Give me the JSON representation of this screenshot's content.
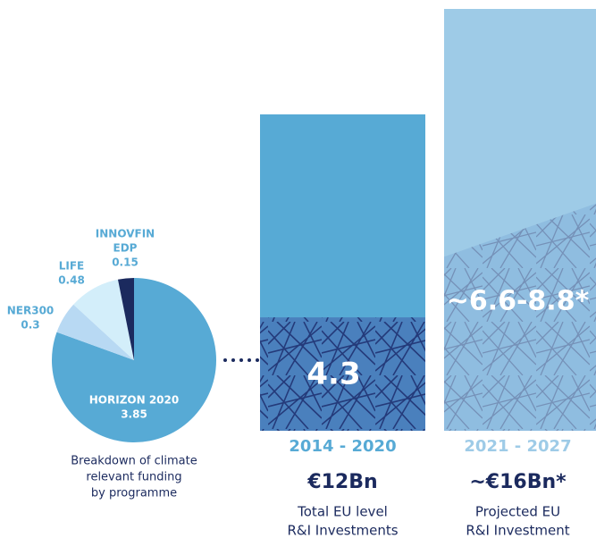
{
  "chart_data": [
    {
      "type": "pie",
      "labels": [
        [
          "HORIZON 2020"
        ],
        [
          "NER300"
        ],
        [
          "LIFE"
        ],
        [
          "INNOVFIN",
          "EDP"
        ]
      ],
      "values": [
        3.85,
        0.3,
        0.48,
        0.15
      ],
      "colors": [
        "#57aad5",
        "#b8d9f3",
        "#d3eefa",
        "#1b2a5e"
      ],
      "label_colors": [
        "#ffffff",
        "#57aad5",
        "#57aad5",
        "#57aad5"
      ],
      "caption": [
        "Breakdown of climate",
        "relevant funding",
        "by programme"
      ]
    },
    {
      "type": "bar",
      "categories": [
        "2014 - 2020",
        "2021 - 2027"
      ],
      "colors": [
        "#57aad5",
        "#9ecbe7"
      ],
      "captions": [
        [
          "Total EU level",
          "R&I Investments"
        ],
        [
          "Projected EU",
          "R&I Investment"
        ]
      ],
      "series": [
        {
          "values": [
            12,
            16
          ],
          "value_labels": [
            "€12Bn",
            "~€16Bn*"
          ]
        },
        {
          "values": [
            4.3,
            6.6
          ],
          "value_labels": [
            "4.3",
            "~6.6-8.8*"
          ]
        },
        {
          "values": [
            4.3,
            8.8
          ]
        }
      ],
      "ylim": [
        0,
        16
      ]
    }
  ]
}
